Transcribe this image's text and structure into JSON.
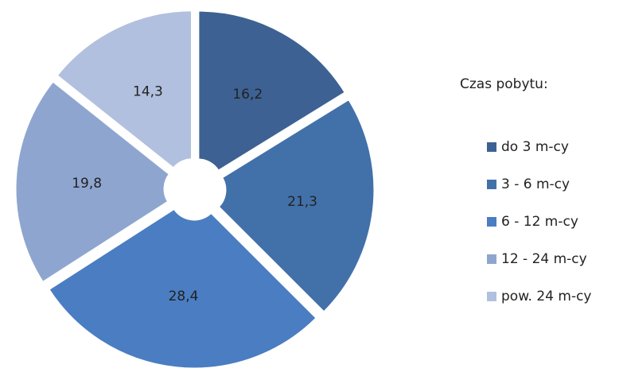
{
  "chart_data": {
    "type": "doughnut",
    "legend_title": "Czas pobytu:",
    "categories": [
      "do 3 m-cy",
      "3 - 6 m-cy",
      "6 - 12 m-cy",
      "12 - 24 m-cy",
      "pow. 24 m-cy"
    ],
    "values": [
      16.2,
      21.3,
      28.4,
      19.8,
      14.3
    ],
    "value_labels": [
      "16,2",
      "21,3",
      "28,4",
      "19,8",
      "14,3"
    ],
    "colors": [
      "#3d6192",
      "#4271aa",
      "#4a7dc2",
      "#8ea6cf",
      "#b1c0de"
    ],
    "legend": "right"
  }
}
